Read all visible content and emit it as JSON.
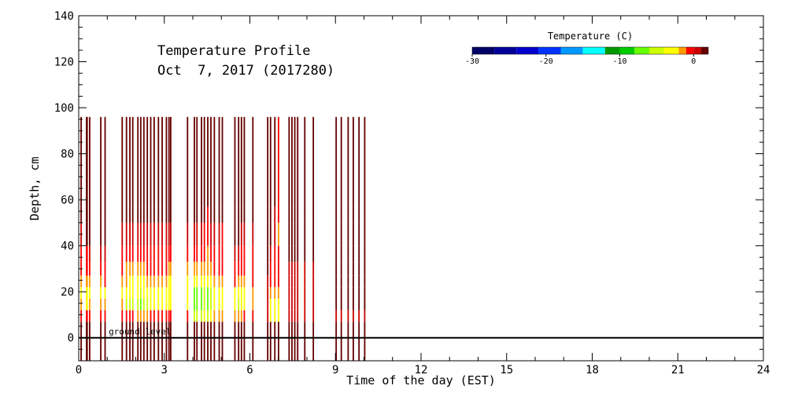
{
  "chart_data": {
    "type": "heatmap",
    "title_line1": "Temperature Profile",
    "title_line2": "Oct  7, 2017 (2017280)",
    "xlabel": "Time of the day (EST)",
    "ylabel": "Depth, cm",
    "xlim": [
      0,
      24
    ],
    "ylim": [
      -10,
      140
    ],
    "x_ticks": [
      0,
      3,
      6,
      9,
      12,
      15,
      18,
      21,
      24
    ],
    "y_ticks": [
      0,
      20,
      40,
      60,
      80,
      100,
      120,
      140
    ],
    "x_tick_labels": [
      "0",
      "3",
      "6",
      "9",
      "12",
      "15",
      "18",
      "21",
      "24"
    ],
    "y_tick_labels": [
      "0",
      "20",
      "40",
      "60",
      "80",
      "100",
      "120",
      "140"
    ],
    "ground_level_label": "ground level",
    "ground_level_depth": 0,
    "colorbar": {
      "title": "Temperature (C)",
      "min": -30,
      "max": 2,
      "tick_values": [
        -30,
        -20,
        -10,
        0
      ],
      "tick_labels": [
        "-30",
        "-20",
        "-10",
        "0"
      ],
      "colors": [
        "#000066",
        "#000099",
        "#0000cc",
        "#0033ff",
        "#0099ff",
        "#00ffff",
        "#009900",
        "#00cc00",
        "#66ff00",
        "#ccff00",
        "#ffff00",
        "#ff9900",
        "#ff0000",
        "#cc0000",
        "#660000"
      ],
      "breaks": [
        -30,
        -27,
        -24,
        -21,
        -18,
        -15,
        -12,
        -10,
        -8,
        -6,
        -4,
        -2,
        -1,
        0,
        1,
        2
      ]
    },
    "depth_layers": [
      [
        -10,
        0
      ],
      [
        0,
        7
      ],
      [
        7,
        12
      ],
      [
        12,
        17
      ],
      [
        17,
        22
      ],
      [
        22,
        27
      ],
      [
        27,
        33
      ],
      [
        33,
        40
      ],
      [
        40,
        50
      ],
      [
        50,
        57
      ],
      [
        57,
        96
      ]
    ],
    "profiles": [
      {
        "x": 0.06,
        "w": 0.05,
        "temps": [
          2,
          1,
          -1,
          -2,
          -4,
          -2,
          -1,
          -1,
          0,
          1,
          2
        ]
      },
      {
        "x": 0.25,
        "w": 0.07,
        "temps": [
          2,
          1,
          -1,
          -3,
          -4,
          -2,
          -1,
          -1,
          1,
          1,
          2
        ]
      },
      {
        "x": 0.36,
        "w": 0.05,
        "temps": [
          2,
          1,
          -1,
          -2,
          -4,
          -2,
          -1,
          0,
          1,
          1,
          2
        ]
      },
      {
        "x": 0.75,
        "w": 0.05,
        "temps": [
          2,
          1,
          -1,
          -2,
          -3,
          -2,
          -1,
          0,
          1,
          1,
          2
        ]
      },
      {
        "x": 0.9,
        "w": 0.05,
        "temps": [
          2,
          1,
          -1,
          -2,
          -3,
          -1,
          -1,
          0,
          1,
          1,
          2
        ]
      },
      {
        "x": 1.5,
        "w": 0.05,
        "temps": [
          2,
          1,
          -1,
          -2,
          -3,
          -2,
          -1,
          -1,
          0,
          1,
          2
        ]
      },
      {
        "x": 1.65,
        "w": 0.05,
        "temps": [
          2,
          1,
          -1,
          -6,
          -4,
          -2,
          -2,
          -1,
          0,
          1,
          2
        ]
      },
      {
        "x": 1.77,
        "w": 0.05,
        "temps": [
          2,
          1,
          -1,
          -6,
          -4,
          -3,
          -2,
          -1,
          0,
          1,
          2
        ]
      },
      {
        "x": 1.87,
        "w": 0.05,
        "temps": [
          2,
          1,
          -1,
          -6,
          -4,
          -3,
          -2,
          -1,
          0,
          1,
          2
        ]
      },
      {
        "x": 2.05,
        "w": 0.05,
        "temps": [
          2,
          1,
          -2,
          -6,
          -4,
          -3,
          -2,
          -1,
          0,
          1,
          2
        ]
      },
      {
        "x": 2.15,
        "w": 0.05,
        "temps": [
          2,
          1,
          -2,
          -8,
          -5,
          -3,
          -2,
          -1,
          0,
          1,
          2
        ]
      },
      {
        "x": 2.26,
        "w": 0.05,
        "temps": [
          2,
          1,
          -2,
          -6,
          -4,
          -3,
          -2,
          -1,
          0,
          1,
          2
        ]
      },
      {
        "x": 2.38,
        "w": 0.05,
        "temps": [
          2,
          1,
          -2,
          -6,
          -4,
          -2,
          -1,
          -1,
          0,
          1,
          2
        ]
      },
      {
        "x": 2.5,
        "w": 0.05,
        "temps": [
          2,
          1,
          -1,
          -3,
          -3,
          -2,
          -1,
          -1,
          0,
          1,
          2
        ]
      },
      {
        "x": 2.62,
        "w": 0.05,
        "temps": [
          2,
          1,
          -1,
          -3,
          -3,
          -2,
          -1,
          -1,
          0,
          1,
          2
        ]
      },
      {
        "x": 2.77,
        "w": 0.05,
        "temps": [
          2,
          1,
          -1,
          -3,
          -3,
          -2,
          -1,
          -1,
          0,
          1,
          2
        ]
      },
      {
        "x": 2.9,
        "w": 0.05,
        "temps": [
          2,
          1,
          -1,
          -3,
          -4,
          -2,
          -1,
          -1,
          0,
          1,
          2
        ]
      },
      {
        "x": 3.05,
        "w": 0.05,
        "temps": [
          2,
          1,
          -1,
          -3,
          -4,
          -2,
          -1,
          -1,
          0,
          1,
          2
        ]
      },
      {
        "x": 3.14,
        "w": 0.05,
        "temps": [
          2,
          1,
          -1,
          -3,
          -4,
          -3,
          -2,
          -1,
          0,
          1,
          2
        ]
      },
      {
        "x": 3.2,
        "w": 0.05,
        "temps": [
          2,
          1,
          -1,
          -3,
          -4,
          -3,
          -2,
          -1,
          0,
          1,
          2
        ]
      },
      {
        "x": 3.79,
        "w": 0.05,
        "temps": [
          2,
          1,
          -1,
          -3,
          -3,
          -3,
          -2,
          -1,
          0,
          1,
          2
        ]
      },
      {
        "x": 4.03,
        "w": 0.05,
        "temps": [
          2,
          1,
          -6,
          -8,
          -8,
          -4,
          -2,
          -1,
          0,
          1,
          2
        ]
      },
      {
        "x": 4.12,
        "w": 0.05,
        "temps": [
          2,
          1,
          -6,
          -8,
          -8,
          -4,
          -2,
          -1,
          0,
          1,
          2
        ]
      },
      {
        "x": 4.28,
        "w": 0.05,
        "temps": [
          2,
          1,
          -6,
          -8,
          -8,
          -4,
          -2,
          -1,
          0,
          1,
          2
        ]
      },
      {
        "x": 4.38,
        "w": 0.05,
        "temps": [
          2,
          1,
          -4,
          -6,
          -6,
          -4,
          -2,
          -1,
          -1,
          1,
          2
        ]
      },
      {
        "x": 4.5,
        "w": 0.05,
        "temps": [
          2,
          1,
          -6,
          -8,
          -8,
          -4,
          -2,
          -2,
          -1,
          -1,
          2
        ]
      },
      {
        "x": 4.61,
        "w": 0.05,
        "temps": [
          2,
          1,
          -3,
          -6,
          -6,
          -4,
          -2,
          -1,
          0,
          1,
          2
        ]
      },
      {
        "x": 4.73,
        "w": 0.05,
        "temps": [
          2,
          1,
          -2,
          -3,
          -3,
          -2,
          -1,
          -1,
          0,
          1,
          2
        ]
      },
      {
        "x": 4.9,
        "w": 0.05,
        "temps": [
          2,
          1,
          -2,
          -3,
          -3,
          -2,
          -1,
          -1,
          0,
          1,
          2
        ]
      },
      {
        "x": 5.01,
        "w": 0.05,
        "temps": [
          2,
          1,
          -2,
          -3,
          -3,
          -2,
          -1,
          -1,
          -1,
          1,
          2
        ]
      },
      {
        "x": 5.45,
        "w": 0.05,
        "temps": [
          2,
          1,
          -2,
          -3,
          -3,
          -1,
          -1,
          0,
          1,
          1,
          2
        ]
      },
      {
        "x": 5.58,
        "w": 0.05,
        "temps": [
          2,
          1,
          -2,
          -6,
          -3,
          -2,
          -1,
          0,
          1,
          1,
          2
        ]
      },
      {
        "x": 5.68,
        "w": 0.05,
        "temps": [
          2,
          1,
          -2,
          -3,
          -3,
          -2,
          -1,
          -1,
          0,
          1,
          2
        ]
      },
      {
        "x": 5.78,
        "w": 0.05,
        "temps": [
          2,
          1,
          -1,
          -3,
          -3,
          -2,
          -1,
          -1,
          0,
          1,
          2
        ]
      },
      {
        "x": 6.08,
        "w": 0.05,
        "temps": [
          2,
          1,
          -1,
          -2,
          -2,
          -1,
          -1,
          -1,
          0,
          1,
          2
        ]
      },
      {
        "x": 6.6,
        "w": 0.05,
        "temps": [
          2,
          1,
          0,
          0,
          0,
          0,
          1,
          1,
          1,
          1,
          2
        ]
      },
      {
        "x": 6.7,
        "w": 0.05,
        "temps": [
          2,
          1,
          -3,
          -3,
          -2,
          -1,
          -1,
          0,
          1,
          1,
          2
        ]
      },
      {
        "x": 6.85,
        "w": 0.05,
        "temps": [
          2,
          1,
          -3,
          -3,
          -2,
          -1,
          -1,
          -1,
          0,
          0,
          1
        ]
      },
      {
        "x": 6.98,
        "w": 0.05,
        "temps": [
          2,
          1,
          -3,
          -3,
          -2,
          -1,
          -1,
          -1,
          -2,
          -1,
          -1
        ]
      },
      {
        "x": 7.35,
        "w": 0.05,
        "temps": [
          2,
          1,
          0,
          0,
          0,
          0,
          0,
          1,
          1,
          1,
          2
        ]
      },
      {
        "x": 7.45,
        "w": 0.05,
        "temps": [
          2,
          1,
          0,
          0,
          0,
          0,
          0,
          1,
          1,
          1,
          2
        ]
      },
      {
        "x": 7.55,
        "w": 0.05,
        "temps": [
          2,
          1,
          0,
          0,
          0,
          0,
          0,
          1,
          1,
          1,
          2
        ]
      },
      {
        "x": 7.65,
        "w": 0.05,
        "temps": [
          2,
          1,
          0,
          0,
          0,
          0,
          0,
          1,
          1,
          1,
          2
        ]
      },
      {
        "x": 7.9,
        "w": 0.05,
        "temps": [
          2,
          1,
          0,
          0,
          0,
          0,
          0,
          1,
          1,
          1,
          2
        ]
      },
      {
        "x": 8.2,
        "w": 0.05,
        "temps": [
          2,
          1,
          0,
          0,
          0,
          0,
          0,
          1,
          1,
          1,
          2
        ]
      },
      {
        "x": 9.0,
        "w": 0.05,
        "temps": [
          2,
          1,
          0,
          1,
          1,
          1,
          1,
          1,
          1,
          1,
          2
        ]
      },
      {
        "x": 9.18,
        "w": 0.05,
        "temps": [
          2,
          1,
          0,
          1,
          1,
          1,
          1,
          1,
          1,
          1,
          2
        ]
      },
      {
        "x": 9.42,
        "w": 0.05,
        "temps": [
          2,
          1,
          0,
          1,
          1,
          1,
          1,
          1,
          1,
          1,
          2
        ]
      },
      {
        "x": 9.6,
        "w": 0.05,
        "temps": [
          2,
          1,
          0,
          1,
          1,
          1,
          1,
          1,
          1,
          1,
          2
        ]
      },
      {
        "x": 9.8,
        "w": 0.05,
        "temps": [
          2,
          1,
          0,
          1,
          1,
          1,
          1,
          1,
          1,
          1,
          2
        ]
      },
      {
        "x": 10.0,
        "w": 0.05,
        "temps": [
          2,
          1,
          0,
          1,
          1,
          1,
          1,
          1,
          1,
          1,
          2
        ]
      }
    ]
  }
}
